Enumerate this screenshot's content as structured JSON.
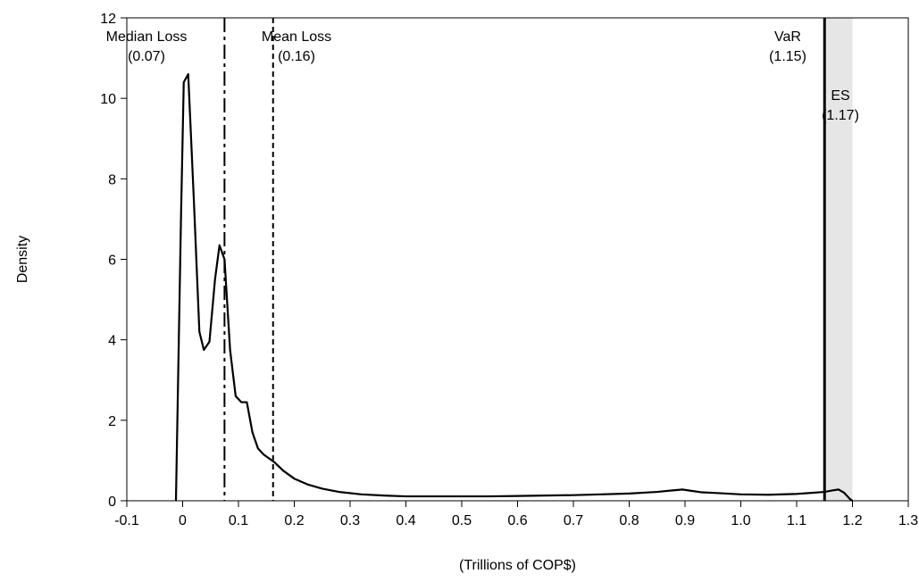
{
  "chart_data": {
    "type": "line",
    "xlabel": "(Trillions of COP$)",
    "ylabel": "Density",
    "xlim": [
      -0.1,
      1.3
    ],
    "ylim": [
      0,
      12
    ],
    "x_ticks": [
      -0.1,
      0,
      0.1,
      0.2,
      0.3,
      0.4,
      0.5,
      0.6,
      0.7,
      0.8,
      0.9,
      1.0,
      1.1,
      1.2,
      1.3
    ],
    "x_tick_labels": [
      "-0.1",
      "0",
      "0.1",
      "0.2",
      "0.3",
      "0.4",
      "0.5",
      "0.6",
      "0.7",
      "0.8",
      "0.9",
      "1.0",
      "1.1",
      "1.2",
      "1.3"
    ],
    "y_ticks": [
      0,
      2,
      4,
      6,
      8,
      10,
      12
    ],
    "y_tick_labels": [
      "0",
      "2",
      "4",
      "6",
      "8",
      "10",
      "12"
    ],
    "grid": false,
    "series": [
      {
        "x": [
          -0.012,
          -0.003,
          0.002,
          0.01,
          0.02,
          0.03,
          0.038,
          0.048,
          0.058,
          0.066,
          0.075,
          0.085,
          0.095,
          0.105,
          0.115,
          0.125,
          0.135,
          0.145,
          0.155,
          0.165,
          0.18,
          0.2,
          0.225,
          0.25,
          0.28,
          0.32,
          0.36,
          0.4,
          0.45,
          0.5,
          0.55,
          0.6,
          0.65,
          0.7,
          0.75,
          0.8,
          0.85,
          0.88,
          0.895,
          0.91,
          0.93,
          0.96,
          1.0,
          1.05,
          1.1,
          1.13,
          1.15,
          1.165,
          1.175,
          1.185,
          1.195,
          1.2
        ],
        "y": [
          0,
          7.0,
          10.4,
          10.6,
          7.5,
          4.2,
          3.75,
          3.95,
          5.5,
          6.35,
          6.0,
          3.75,
          2.6,
          2.45,
          2.45,
          1.7,
          1.3,
          1.15,
          1.05,
          0.95,
          0.75,
          0.55,
          0.4,
          0.3,
          0.22,
          0.16,
          0.13,
          0.11,
          0.11,
          0.11,
          0.11,
          0.12,
          0.13,
          0.14,
          0.16,
          0.18,
          0.22,
          0.26,
          0.28,
          0.25,
          0.21,
          0.19,
          0.16,
          0.15,
          0.17,
          0.2,
          0.22,
          0.26,
          0.28,
          0.2,
          0.05,
          0
        ]
      }
    ],
    "shaded_region": {
      "x_from": 1.15,
      "x_to": 1.2,
      "color": "#e6e6e6"
    },
    "annotations": [
      {
        "x": 0.075,
        "style": "dash-dot",
        "name": "Median Loss",
        "value": "(0.07)"
      },
      {
        "x": 0.162,
        "style": "dashed",
        "name": "Mean Loss",
        "value": "(0.16)"
      },
      {
        "x": 1.15,
        "style": "solid",
        "name": "VaR",
        "value": "(1.15)"
      },
      {
        "x": 1.17,
        "style": "none",
        "name": "ES",
        "value": "(1.17)"
      }
    ],
    "colors": {
      "line": "#000000",
      "shade": "#e6e6e6"
    }
  }
}
